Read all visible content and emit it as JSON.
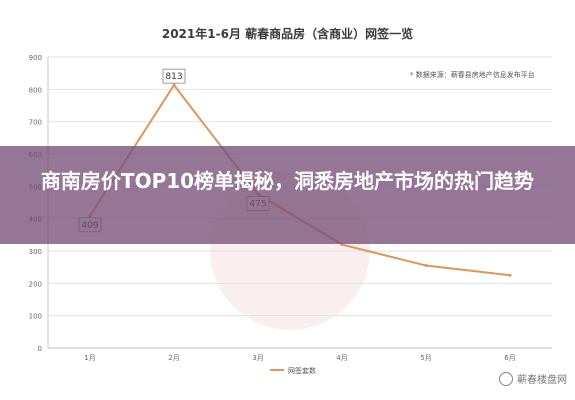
{
  "chart_data": {
    "type": "line",
    "title": "2021年1-6月 蕲春商品房（含商业）网签一览",
    "categories": [
      "1月",
      "2月",
      "3月",
      "4月",
      "5月",
      "6月"
    ],
    "series": [
      {
        "name": "网签套数",
        "values": [
          409,
          813,
          475,
          320,
          255,
          225
        ],
        "labels": [
          "409",
          "813",
          "475",
          "",
          "",
          ""
        ]
      }
    ],
    "ylim": [
      0,
      900
    ],
    "yticks": [
      0,
      100,
      200,
      300,
      400,
      500,
      600,
      700,
      800,
      900
    ],
    "grid": true,
    "legend": "bottom",
    "note": "* 数据来源：蕲春县房地产信息发布平台",
    "line_color": "#e0955a"
  },
  "overlay": {
    "headline": "商南房价TOP10榜单揭秘，洞悉房地产市场的热门趋势"
  },
  "brand": {
    "text": "蕲春楼盘网"
  }
}
